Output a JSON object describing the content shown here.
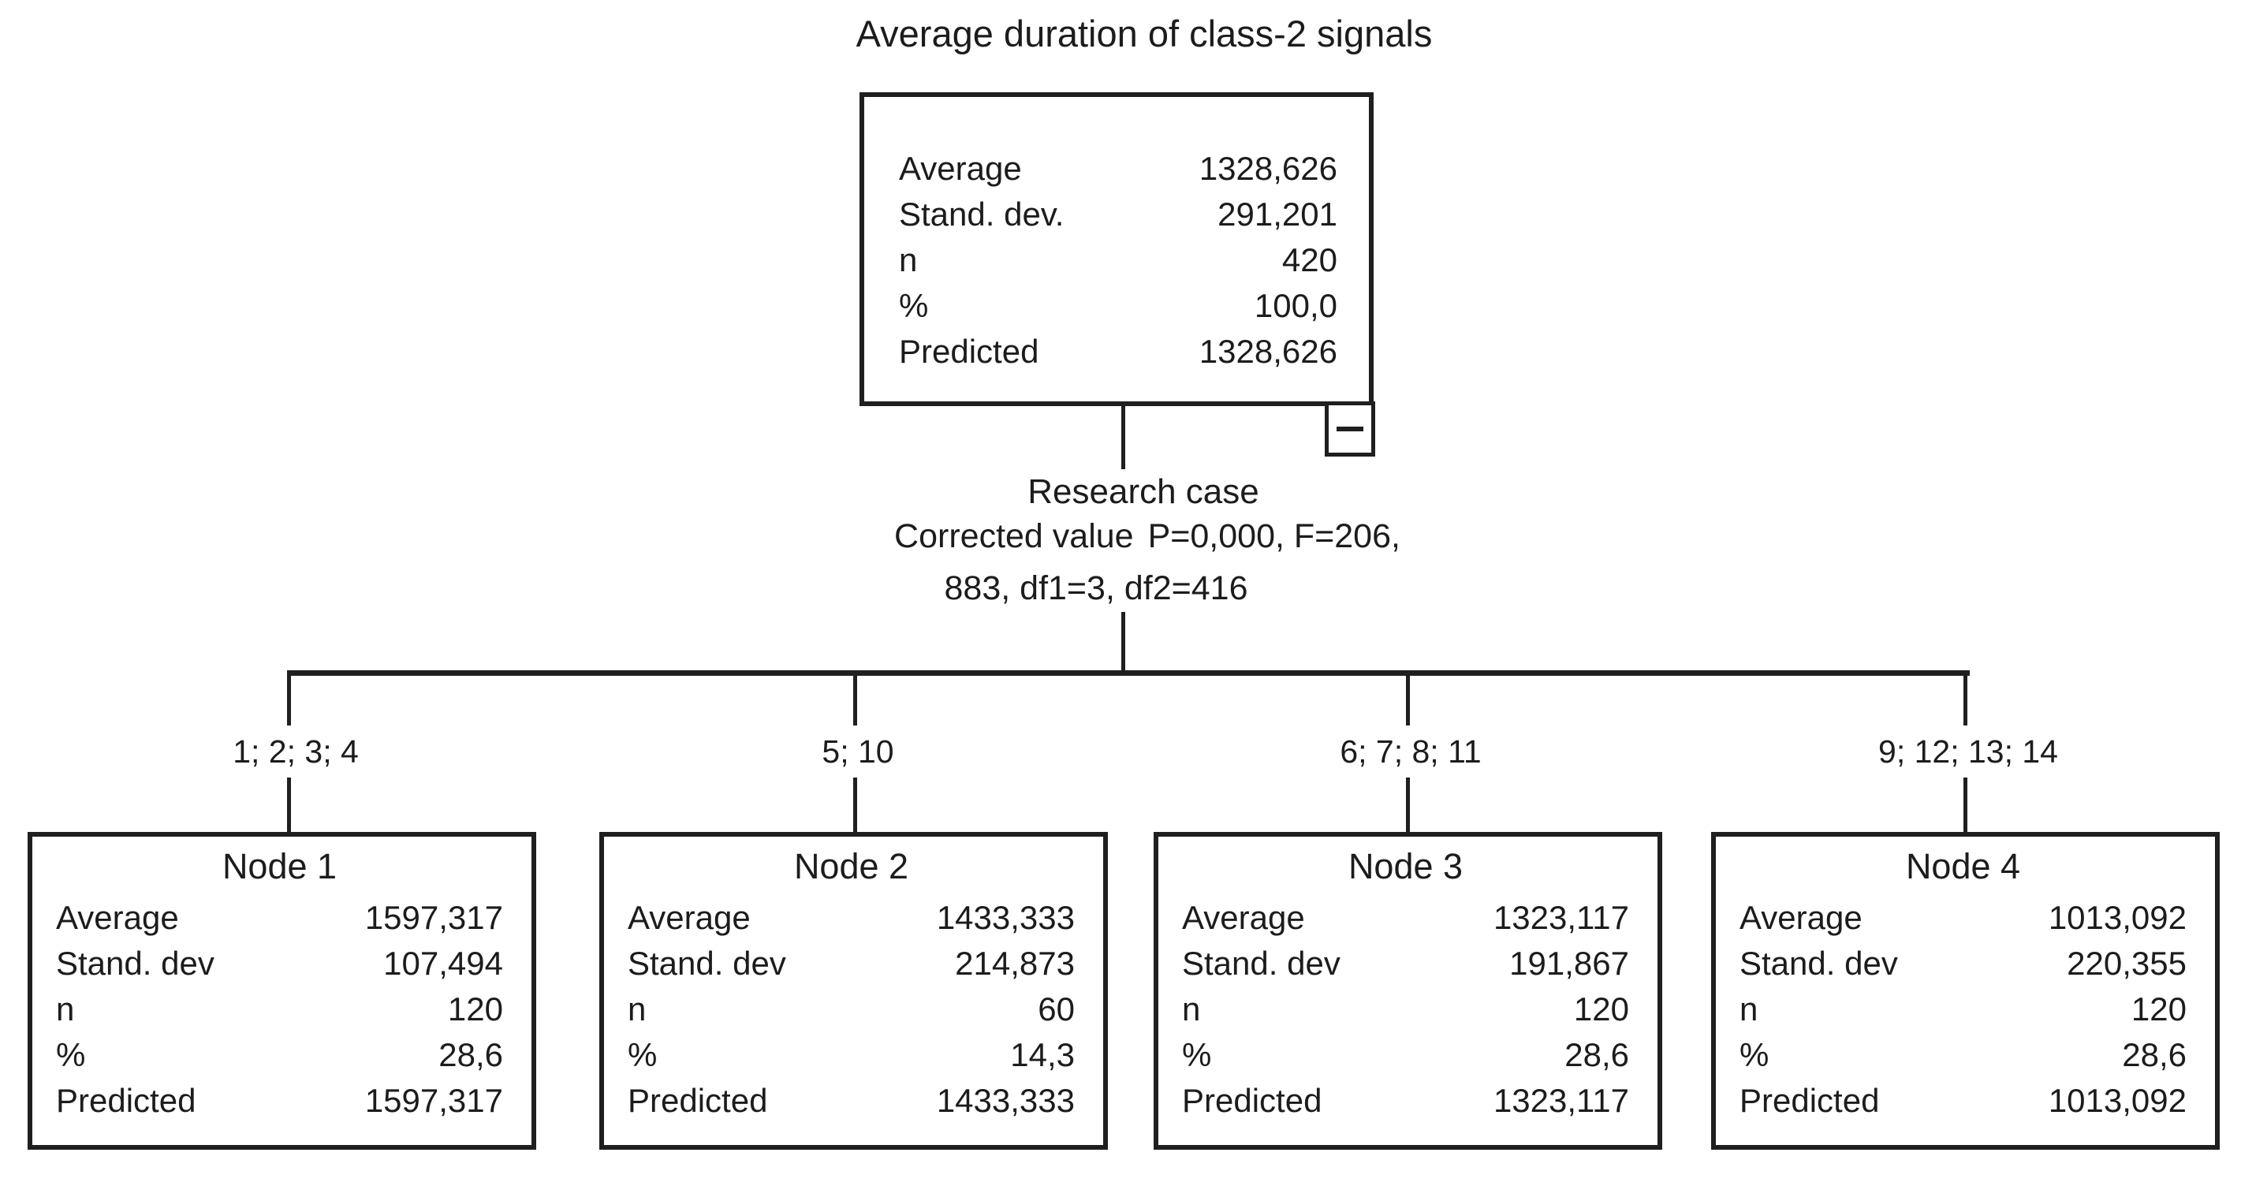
{
  "title": "Average duration of class-2 signals",
  "colors": {
    "ink": "#1c1c1c",
    "background": "#ffffff"
  },
  "icons": {
    "collapse": "minus-icon"
  },
  "root": {
    "stats": [
      {
        "label": "Average",
        "value": "1328,626"
      },
      {
        "label": "Stand. dev.",
        "value": "291,201"
      },
      {
        "label": "n",
        "value": "420"
      },
      {
        "label": "%",
        "value": "100,0"
      },
      {
        "label": "Predicted",
        "value": "1328,626"
      }
    ]
  },
  "split": {
    "variable": "Research case",
    "test_label": "Corrected value",
    "stats_line1": "P=0,000, F=206,",
    "stats_line2": "883, df1=3, df2=416"
  },
  "branches": [
    {
      "label": "1;  2;  3;  4"
    },
    {
      "label": "5; 10"
    },
    {
      "label": "6;  7;  8; 11"
    },
    {
      "label": "9; 12; 13; 14"
    }
  ],
  "nodes": [
    {
      "title": "Node 1",
      "stats": [
        {
          "label": "Average",
          "value": "1597,317"
        },
        {
          "label": "Stand. dev",
          "value": "107,494"
        },
        {
          "label": "n",
          "value": "120"
        },
        {
          "label": "%",
          "value": "28,6"
        },
        {
          "label": "Predicted",
          "value": "1597,317"
        }
      ]
    },
    {
      "title": "Node 2",
      "stats": [
        {
          "label": "Average",
          "value": "1433,333"
        },
        {
          "label": "Stand. dev",
          "value": "214,873"
        },
        {
          "label": "n",
          "value": "60"
        },
        {
          "label": "%",
          "value": "14,3"
        },
        {
          "label": "Predicted",
          "value": "1433,333"
        }
      ]
    },
    {
      "title": "Node 3",
      "stats": [
        {
          "label": "Average",
          "value": "1323,117"
        },
        {
          "label": "Stand. dev",
          "value": "191,867"
        },
        {
          "label": "n",
          "value": "120"
        },
        {
          "label": "%",
          "value": "28,6"
        },
        {
          "label": "Predicted",
          "value": "1323,117"
        }
      ]
    },
    {
      "title": "Node 4",
      "stats": [
        {
          "label": "Average",
          "value": "1013,092"
        },
        {
          "label": "Stand. dev",
          "value": "220,355"
        },
        {
          "label": "n",
          "value": "120"
        },
        {
          "label": "%",
          "value": "28,6"
        },
        {
          "label": "Predicted",
          "value": "1013,092"
        }
      ]
    }
  ]
}
